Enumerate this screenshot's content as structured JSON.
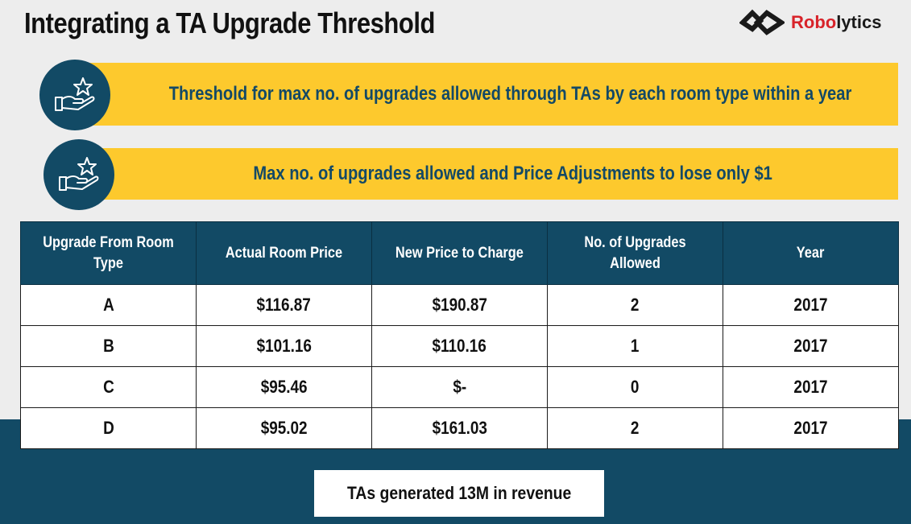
{
  "title": "Integrating a TA Upgrade Threshold",
  "logo": {
    "text_red": "Robo",
    "text_dark": "lytics",
    "icon": "robolytics-logo-mark"
  },
  "banners": [
    {
      "text": "Threshold for max no. of upgrades allowed through TAs by each room type within a year",
      "icon": "hand-star-icon"
    },
    {
      "text": "Max no. of upgrades allowed and Price Adjustments to lose only $1",
      "icon": "hand-star-icon"
    }
  ],
  "table": {
    "headers": [
      "Upgrade From  Room Type",
      "Actual Room Price",
      "New Price to Charge",
      "No. of Upgrades Allowed",
      "Year"
    ],
    "rows": [
      [
        "A",
        "$116.87",
        "$190.87",
        "2",
        "2017"
      ],
      [
        "B",
        "$101.16",
        "$110.16",
        "1",
        "2017"
      ],
      [
        "C",
        "$95.46",
        "$-",
        "0",
        "2017"
      ],
      [
        "D",
        "$95.02",
        "$161.03",
        "2",
        "2017"
      ]
    ]
  },
  "note": "TAs generated 13M in revenue",
  "colors": {
    "navy": "#124a65",
    "yellow": "#fdc92d",
    "brand_red": "#d8232a",
    "background": "#ededed"
  }
}
